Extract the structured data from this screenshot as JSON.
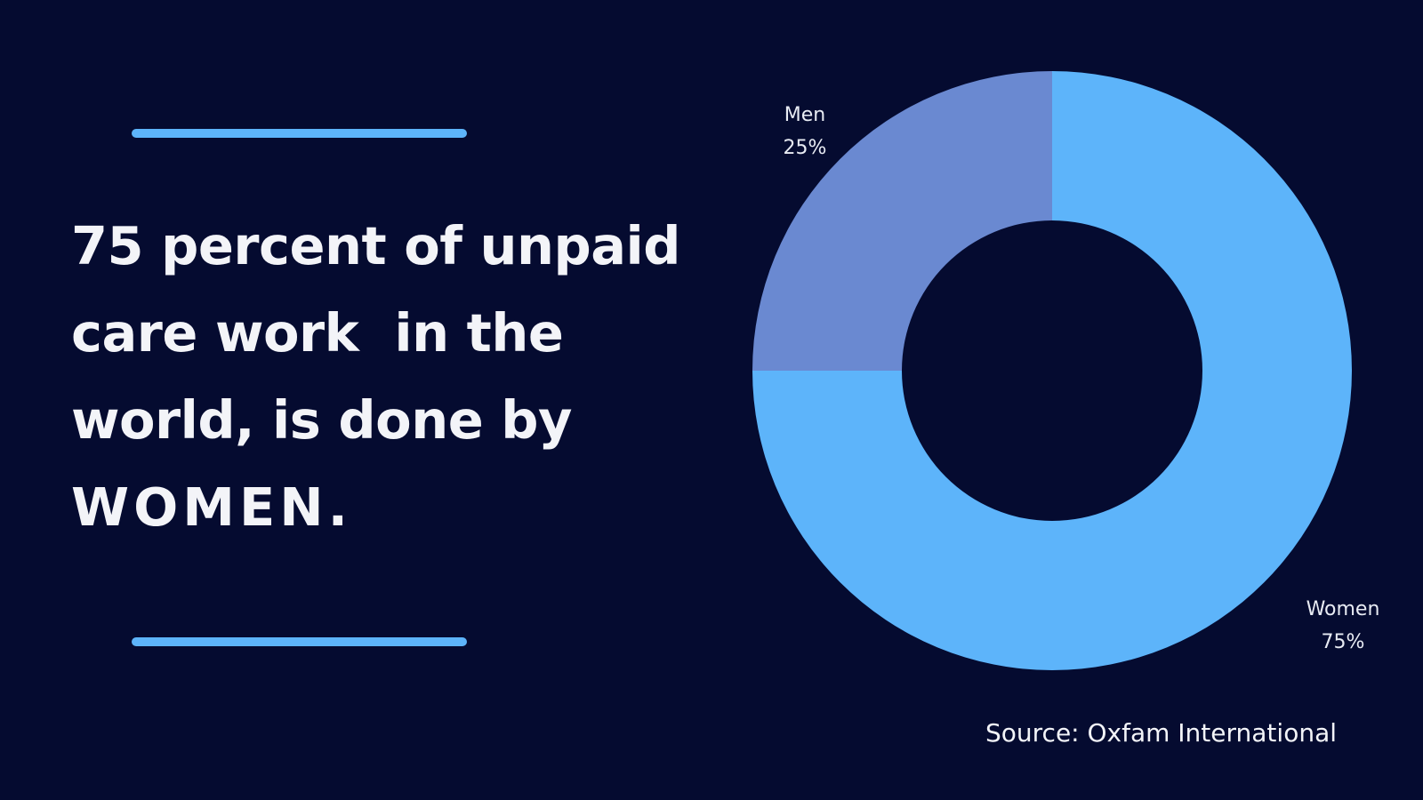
{
  "headline": {
    "lines": [
      "75 percent of unpaid",
      "care work  in the",
      "world, is done by",
      "WOMEN."
    ]
  },
  "chart_data": {
    "type": "pie",
    "variant": "donut",
    "categories": [
      "Women",
      "Men"
    ],
    "values": [
      75,
      25
    ],
    "value_labels": [
      "75%",
      "25%"
    ],
    "colors": [
      "#5db4fa",
      "#6a89d1"
    ],
    "background": "#050b30",
    "legend": "none",
    "title": ""
  },
  "source": "Source: Oxfam International"
}
